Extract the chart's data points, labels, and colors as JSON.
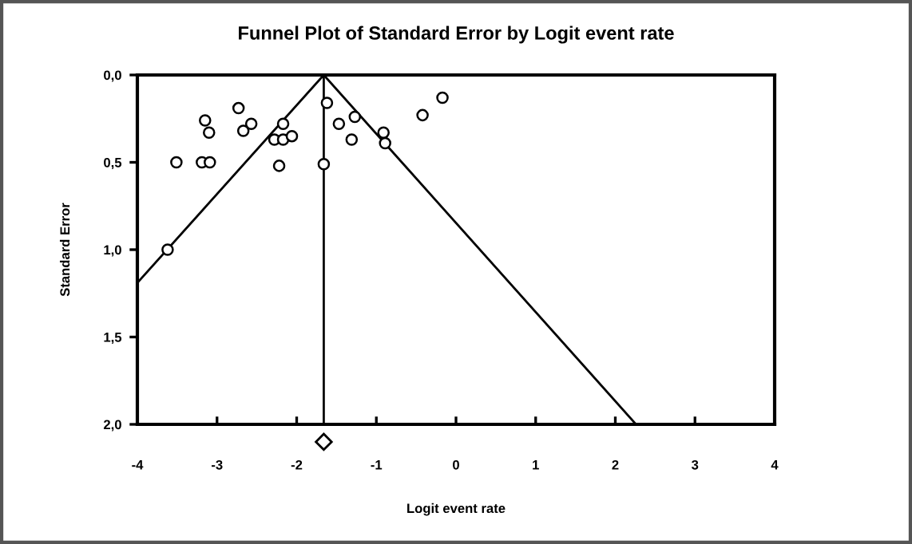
{
  "chart_data": {
    "type": "scatter",
    "title": "Funnel Plot of Standard Error by Logit event rate",
    "xlabel": "Logit event rate",
    "ylabel": "Standard Error",
    "xlim": [
      -4,
      4
    ],
    "xticks": [
      -4,
      -3,
      -2,
      -1,
      0,
      1,
      2,
      3,
      4
    ],
    "ylim": [
      2.0,
      0.0
    ],
    "yticks": [
      {
        "value": 0.0,
        "label": "0,0"
      },
      {
        "value": 0.5,
        "label": "0,5"
      },
      {
        "value": 1.0,
        "label": "1,0"
      },
      {
        "value": 1.5,
        "label": "1,5"
      },
      {
        "value": 2.0,
        "label": "2,0"
      }
    ],
    "grid": false,
    "legend": false,
    "marker": "circle",
    "series": [
      {
        "color": "#000000",
        "x": [
          -3.51,
          -3.15,
          -3.1,
          -3.19,
          -3.09,
          -2.73,
          -2.67,
          -2.57,
          -2.17,
          -2.28,
          -2.17,
          -2.06,
          -2.22,
          -1.66,
          -1.62,
          -1.47,
          -1.27,
          -1.31,
          -0.91,
          -0.89,
          -0.42,
          -0.17,
          -3.62
        ],
        "values": [
          0.5,
          0.26,
          0.33,
          0.5,
          0.5,
          0.19,
          0.32,
          0.28,
          0.28,
          0.37,
          0.37,
          0.35,
          0.52,
          0.51,
          0.16,
          0.28,
          0.24,
          0.37,
          0.33,
          0.39,
          0.23,
          0.13,
          1.0
        ]
      },
      {
        "type": "line",
        "color": "#000000",
        "marker": "none",
        "x": [
          -4,
          -1.66,
          2.26
        ],
        "values": [
          1.19,
          0,
          2.0
        ]
      }
    ],
    "ref_lines": [
      {
        "axis": "x",
        "value": -1.66,
        "color": "#000000",
        "line_style": "solid"
      }
    ]
  }
}
